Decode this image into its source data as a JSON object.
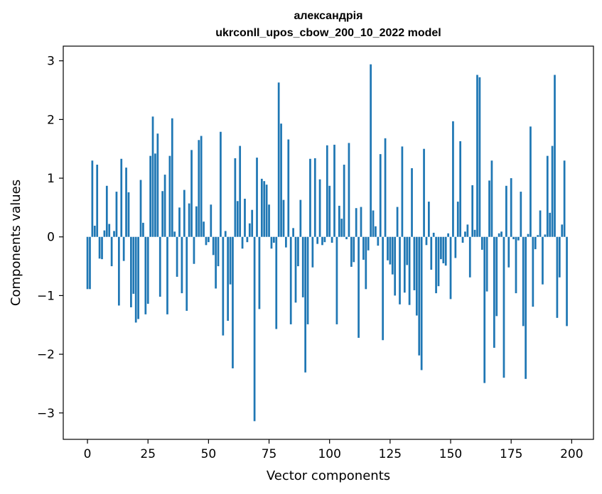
{
  "chart_data": {
    "type": "bar",
    "title": "александрія",
    "subtitle": "ukrconll_upos_cbow_200_10_2022 model",
    "xlabel": "Vector components",
    "ylabel": "Components values",
    "xlim": [
      -10,
      209
    ],
    "ylim": [
      -3.45,
      3.25
    ],
    "xticks": [
      0,
      25,
      50,
      75,
      100,
      125,
      150,
      175,
      200
    ],
    "yticks": [
      -3,
      -2,
      -1,
      0,
      1,
      2,
      3
    ],
    "ytick_labels": [
      "−3",
      "−2",
      "−1",
      "0",
      "1",
      "2",
      "3"
    ],
    "bar_color": "#1f77b4",
    "values": [
      -0.89,
      -0.89,
      1.3,
      0.19,
      1.23,
      -0.37,
      -0.38,
      0.11,
      0.87,
      0.22,
      -0.5,
      0.1,
      0.77,
      -1.17,
      1.33,
      -0.41,
      1.18,
      0.76,
      -1.2,
      -0.97,
      -1.46,
      -1.4,
      0.97,
      0.24,
      -1.32,
      -1.14,
      1.38,
      2.05,
      1.42,
      1.76,
      -1.02,
      0.78,
      1.06,
      -1.32,
      1.38,
      2.02,
      0.09,
      -0.68,
      0.5,
      -0.96,
      0.8,
      -1.26,
      0.57,
      1.48,
      -0.46,
      0.52,
      1.65,
      1.72,
      0.26,
      -0.14,
      -0.09,
      0.55,
      -0.31,
      -0.88,
      -0.5,
      1.79,
      -1.68,
      0.1,
      -1.43,
      -0.81,
      -2.24,
      1.34,
      0.61,
      1.55,
      -0.2,
      0.65,
      -0.09,
      0.23,
      0.46,
      -3.14,
      1.35,
      -1.23,
      0.99,
      0.95,
      0.89,
      0.55,
      -0.2,
      -0.1,
      -1.57,
      2.63,
      1.93,
      0.63,
      -0.18,
      1.66,
      -1.49,
      0.15,
      -1.12,
      -0.5,
      0.63,
      -1.03,
      -2.31,
      -1.49,
      1.33,
      -0.52,
      1.34,
      -0.12,
      0.98,
      -0.14,
      -0.09,
      1.56,
      0.87,
      -0.1,
      1.57,
      -1.49,
      0.53,
      0.31,
      1.23,
      -0.04,
      1.6,
      -0.51,
      -0.43,
      0.49,
      -1.72,
      0.51,
      -0.39,
      -0.89,
      -0.23,
      2.94,
      0.45,
      0.18,
      -0.15,
      1.41,
      -1.76,
      1.68,
      -0.4,
      -0.47,
      -0.64,
      -1.0,
      0.51,
      -1.15,
      1.54,
      -0.95,
      -0.48,
      -1.16,
      1.17,
      -0.91,
      -1.34,
      -2.02,
      -2.27,
      1.5,
      -0.14,
      0.6,
      -0.56,
      0.07,
      -0.96,
      -0.84,
      -0.38,
      -0.45,
      -0.49,
      0.06,
      -1.06,
      1.97,
      -0.36,
      0.6,
      1.63,
      -0.1,
      0.09,
      0.21,
      -0.69,
      0.88,
      0.12,
      2.76,
      2.72,
      -0.22,
      -2.49,
      -0.93,
      0.96,
      1.3,
      -1.89,
      -1.35,
      0.06,
      0.09,
      -2.4,
      0.87,
      -0.52,
      1.0,
      -0.04,
      -0.96,
      -0.06,
      0.77,
      -1.52,
      -2.42,
      0.05,
      1.88,
      -1.19,
      -0.21,
      0.03,
      0.45,
      -0.81,
      0.04,
      1.38,
      0.41,
      1.55,
      2.76,
      -1.38,
      -0.69,
      0.21,
      1.3,
      -1.52
    ]
  }
}
